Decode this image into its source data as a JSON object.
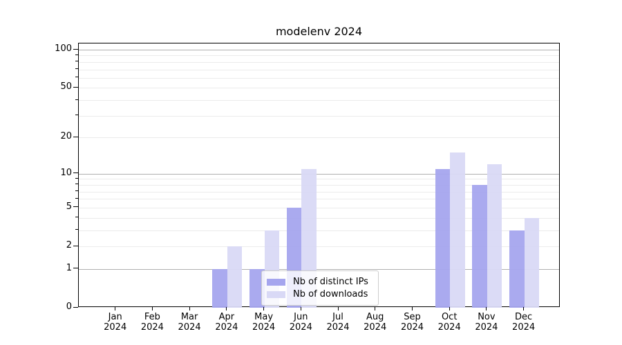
{
  "chart_data": {
    "type": "bar",
    "title": "modelenv 2024",
    "categories": [
      "Jan",
      "Feb",
      "Mar",
      "Apr",
      "May",
      "Jun",
      "Jul",
      "Aug",
      "Sep",
      "Oct",
      "Nov",
      "Dec"
    ],
    "x_tick_year": "2024",
    "series": [
      {
        "key": "distinct-ips",
        "name": "Nb of distinct IPs",
        "color": "#a5a5ee",
        "values": [
          0,
          0,
          0,
          1,
          1,
          5,
          0,
          0,
          0,
          11,
          8,
          3
        ]
      },
      {
        "key": "downloads",
        "name": "Nb of downloads",
        "color": "#d9d9f6",
        "values": [
          0,
          0,
          0,
          2,
          3,
          11,
          0,
          0,
          0,
          15,
          12,
          4
        ]
      }
    ],
    "y_axis": {
      "scale": "log10(1+y)",
      "tick_values": [
        0,
        1,
        2,
        5,
        10,
        20,
        50,
        100
      ],
      "tick_labels": [
        "0",
        "1",
        "2",
        "5",
        "10",
        "20",
        "50",
        "100"
      ],
      "major_gridlines": [
        1,
        10,
        100
      ],
      "minor_gridlines": [
        2,
        3,
        4,
        5,
        6,
        7,
        8,
        9,
        20,
        30,
        40,
        50,
        60,
        70,
        80,
        90
      ],
      "ylim_top": 113
    },
    "legend": {
      "position": "lower center"
    },
    "colors": {
      "major_grid": "#b0b0b0",
      "minor_grid": "#ebebeb",
      "axis": "#000000",
      "text": "#000000"
    }
  }
}
